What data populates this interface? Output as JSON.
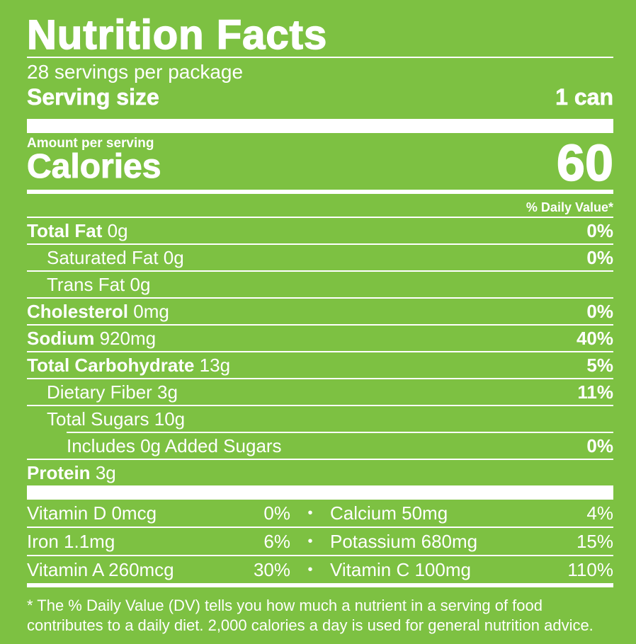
{
  "title": "Nutrition Facts",
  "servings_per_package": "28 servings per package",
  "serving_size": {
    "label": "Serving size",
    "value": "1 can"
  },
  "amount_per_serving": "Amount per serving",
  "calories": {
    "label": "Calories",
    "value": "60"
  },
  "daily_value_header": "% Daily Value*",
  "nutrients": {
    "total_fat": {
      "name": "Total Fat",
      "amount": "0g",
      "dv": "0%"
    },
    "saturated_fat": {
      "text": "Saturated Fat 0g",
      "dv": "0%"
    },
    "trans_fat": {
      "text": "Trans Fat 0g"
    },
    "cholesterol": {
      "name": "Cholesterol",
      "amount": "0mg",
      "dv": "0%"
    },
    "sodium": {
      "name": "Sodium",
      "amount": "920mg",
      "dv": "40%"
    },
    "total_carb": {
      "name": "Total Carbohydrate",
      "amount": "13g",
      "dv": "5%"
    },
    "dietary_fiber": {
      "text": "Dietary Fiber 3g",
      "dv": "11%"
    },
    "total_sugars": {
      "text": "Total Sugars 10g"
    },
    "added_sugars": {
      "text": "Includes 0g Added Sugars",
      "dv": "0%"
    },
    "protein": {
      "name": "Protein",
      "amount": "3g"
    }
  },
  "vitamins": [
    {
      "left": "Vitamin D 0mcg",
      "left_dv": "0%",
      "right": "Calcium 50mg",
      "right_dv": "4%"
    },
    {
      "left": "Iron 1.1mg",
      "left_dv": "6%",
      "right": "Potassium 680mg",
      "right_dv": "15%"
    },
    {
      "left": "Vitamin A 260mcg",
      "left_dv": "30%",
      "right": "Vitamin C 100mg",
      "right_dv": "110%"
    }
  ],
  "separator": "•",
  "footnote": "* The % Daily Value (DV) tells you how much a nutrient in a serving of food contributes to a daily diet. 2,000 calories a day is used for general nutrition advice.",
  "colors": {
    "background": "#7dc142",
    "foreground": "#ffffff"
  }
}
